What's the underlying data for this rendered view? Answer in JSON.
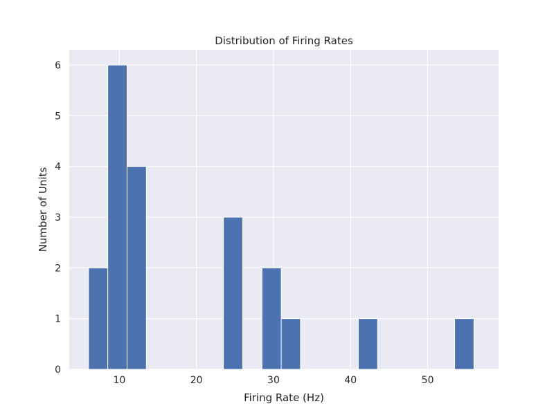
{
  "chart_data": {
    "type": "bar",
    "title": "Distribution of Firing Rates",
    "xlabel": "Firing Rate (Hz)",
    "ylabel": "Number of Units",
    "xlim": [
      3.5,
      59.2
    ],
    "ylim": [
      0,
      6.3
    ],
    "xticks": [
      10,
      20,
      30,
      40,
      50
    ],
    "yticks": [
      0,
      1,
      2,
      3,
      4,
      5,
      6
    ],
    "bin_edges": [
      6.0,
      8.5,
      11.0,
      13.5,
      16.0,
      18.5,
      21.0,
      23.5,
      26.0,
      28.5,
      31.0,
      33.5,
      36.0,
      38.5,
      41.0,
      43.5,
      46.0,
      48.5,
      51.0,
      53.5,
      56.0
    ],
    "values": [
      2,
      6,
      4,
      0,
      0,
      0,
      0,
      3,
      0,
      2,
      1,
      0,
      0,
      0,
      1,
      0,
      0,
      0,
      0,
      1
    ],
    "grid": true,
    "background": "#EAEAF2",
    "bar_color": "#4C72B0",
    "grid_color": "#FFFFFF"
  }
}
